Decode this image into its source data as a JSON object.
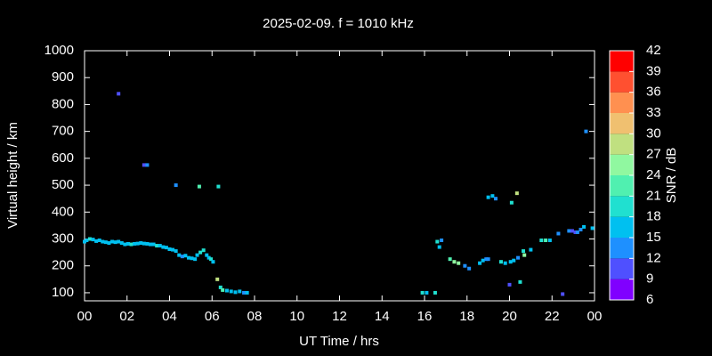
{
  "chart_data": {
    "type": "scatter",
    "title": "2025-02-09. f = 1010 kHz",
    "x_label": "UT Time / hrs",
    "y_label": "Virtual height / km",
    "xlim": [
      0,
      24
    ],
    "xticks": [
      {
        "value": 0,
        "label": "00"
      },
      {
        "value": 2,
        "label": "02"
      },
      {
        "value": 4,
        "label": "04"
      },
      {
        "value": 6,
        "label": "06"
      },
      {
        "value": 8,
        "label": "08"
      },
      10,
      12,
      14,
      16,
      18,
      20,
      22,
      {
        "value": 24,
        "label": "00"
      }
    ],
    "ylim": [
      70,
      1000
    ],
    "yticks": [
      100,
      200,
      300,
      400,
      500,
      600,
      700,
      800,
      900,
      1000
    ],
    "x": [
      0.0,
      0.1,
      0.25,
      0.4,
      0.55,
      0.7,
      0.85,
      1.0,
      1.15,
      1.3,
      1.45,
      1.6,
      1.75,
      1.9,
      2.05,
      2.2,
      2.35,
      2.5,
      2.65,
      2.8,
      2.95,
      3.1,
      3.25,
      3.4,
      3.55,
      3.7,
      3.85,
      4.0,
      4.15,
      4.3,
      4.45,
      4.6,
      4.75,
      4.9,
      5.05,
      5.2,
      5.3,
      5.45,
      5.6,
      5.75,
      5.85,
      5.95,
      6.05,
      6.25,
      6.4,
      6.5,
      6.7,
      6.9,
      7.1,
      7.3,
      7.5,
      7.65,
      1.6,
      2.8,
      2.95,
      4.3,
      5.4,
      6.3,
      15.9,
      16.1,
      16.5,
      16.6,
      16.7,
      16.8,
      17.2,
      17.4,
      17.6,
      17.9,
      18.1,
      18.6,
      18.75,
      18.9,
      19.0,
      19.2,
      19.35,
      19.0,
      19.6,
      19.8,
      20.0,
      20.05,
      20.2,
      20.4,
      20.1,
      20.35,
      20.5,
      20.65,
      20.7,
      21.0,
      21.5,
      21.7,
      21.9,
      22.3,
      22.5,
      22.8,
      22.95,
      23.1,
      23.2,
      23.35,
      23.5,
      23.6,
      23.9
    ],
    "values": [
      290,
      295,
      300,
      298,
      292,
      295,
      290,
      288,
      285,
      290,
      288,
      290,
      285,
      280,
      282,
      280,
      282,
      283,
      285,
      283,
      282,
      280,
      280,
      275,
      275,
      270,
      268,
      262,
      260,
      255,
      240,
      235,
      238,
      230,
      228,
      225,
      240,
      250,
      258,
      240,
      230,
      225,
      215,
      150,
      120,
      110,
      108,
      105,
      102,
      105,
      100,
      100,
      840,
      575,
      575,
      500,
      495,
      495,
      100,
      100,
      100,
      290,
      270,
      295,
      225,
      215,
      210,
      200,
      190,
      210,
      220,
      225,
      455,
      460,
      450,
      225,
      215,
      210,
      130,
      215,
      220,
      230,
      435,
      470,
      140,
      255,
      240,
      260,
      295,
      295,
      295,
      320,
      95,
      330,
      330,
      325,
      325,
      335,
      345,
      700,
      340
    ],
    "snr": [
      17,
      16,
      19,
      16,
      17,
      15,
      17,
      16,
      15,
      17,
      16,
      17,
      15,
      17,
      16,
      18,
      17,
      16,
      17,
      16,
      15,
      17,
      16,
      18,
      17,
      16,
      17,
      16,
      17,
      16,
      15,
      14,
      16,
      17,
      15,
      16,
      17,
      19,
      18,
      17,
      16,
      18,
      17,
      29,
      20,
      21,
      17,
      16,
      15,
      16,
      13,
      15,
      11,
      11,
      12,
      12,
      22,
      20,
      18,
      17,
      19,
      18,
      16,
      14,
      23,
      25,
      26,
      14,
      13,
      17,
      16,
      14,
      17,
      16,
      14,
      12,
      18,
      15,
      10,
      16,
      15,
      14,
      19,
      28,
      18,
      20,
      26,
      15,
      20,
      22,
      17,
      14,
      11,
      12,
      11,
      11,
      12,
      14,
      16,
      12,
      17
    ],
    "colorbar": {
      "label": "SNR / dB",
      "lim": [
        6,
        42
      ],
      "ticks": [
        6,
        9,
        12,
        15,
        18,
        21,
        24,
        27,
        30,
        33,
        36,
        39,
        42
      ],
      "colors": [
        "#8000ff",
        "#4f50ff",
        "#1e90ff",
        "#00c0f0",
        "#20e0d0",
        "#50f0b0",
        "#90f8a0",
        "#c0e080",
        "#f0c070",
        "#ff9050",
        "#ff5030",
        "#ff0000"
      ]
    }
  }
}
